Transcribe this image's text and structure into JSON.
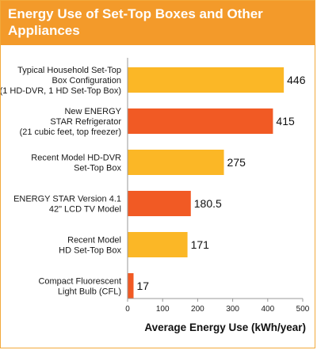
{
  "title": "Energy Use of Set-Top Boxes and Other Appliances",
  "colors": {
    "header": "#f39a2a",
    "bar_yellow": "#fbb726",
    "bar_orange": "#f15a24",
    "axis": "#999999"
  },
  "chart_data": {
    "type": "bar",
    "orientation": "horizontal",
    "categories": [
      [
        "Typical Household Set-Top",
        "Box Configuration",
        "(1 HD-DVR, 1 HD Set-Top Box)"
      ],
      [
        "New ENERGY",
        "STAR Refrigerator",
        "(21 cubic feet, top freezer)"
      ],
      [
        "Recent Model HD-DVR",
        "Set-Top Box"
      ],
      [
        "ENERGY STAR Version 4.1",
        "42\" LCD TV Model"
      ],
      [
        "Recent Model",
        "HD Set-Top Box"
      ],
      [
        "Compact Fluorescent",
        "Light Bulb (CFL)"
      ]
    ],
    "values": [
      446,
      415,
      275,
      180.5,
      171,
      17
    ],
    "value_labels": [
      "446",
      "415",
      "275",
      "180.5",
      "171",
      "17"
    ],
    "bar_colors": [
      "#fbb726",
      "#f15a24",
      "#fbb726",
      "#f15a24",
      "#fbb726",
      "#f15a24"
    ],
    "xlim": [
      0,
      500
    ],
    "xticks": [
      0,
      100,
      200,
      300,
      400,
      500
    ],
    "xlabel": "Average Energy Use (kWh/year)",
    "grid": false
  }
}
